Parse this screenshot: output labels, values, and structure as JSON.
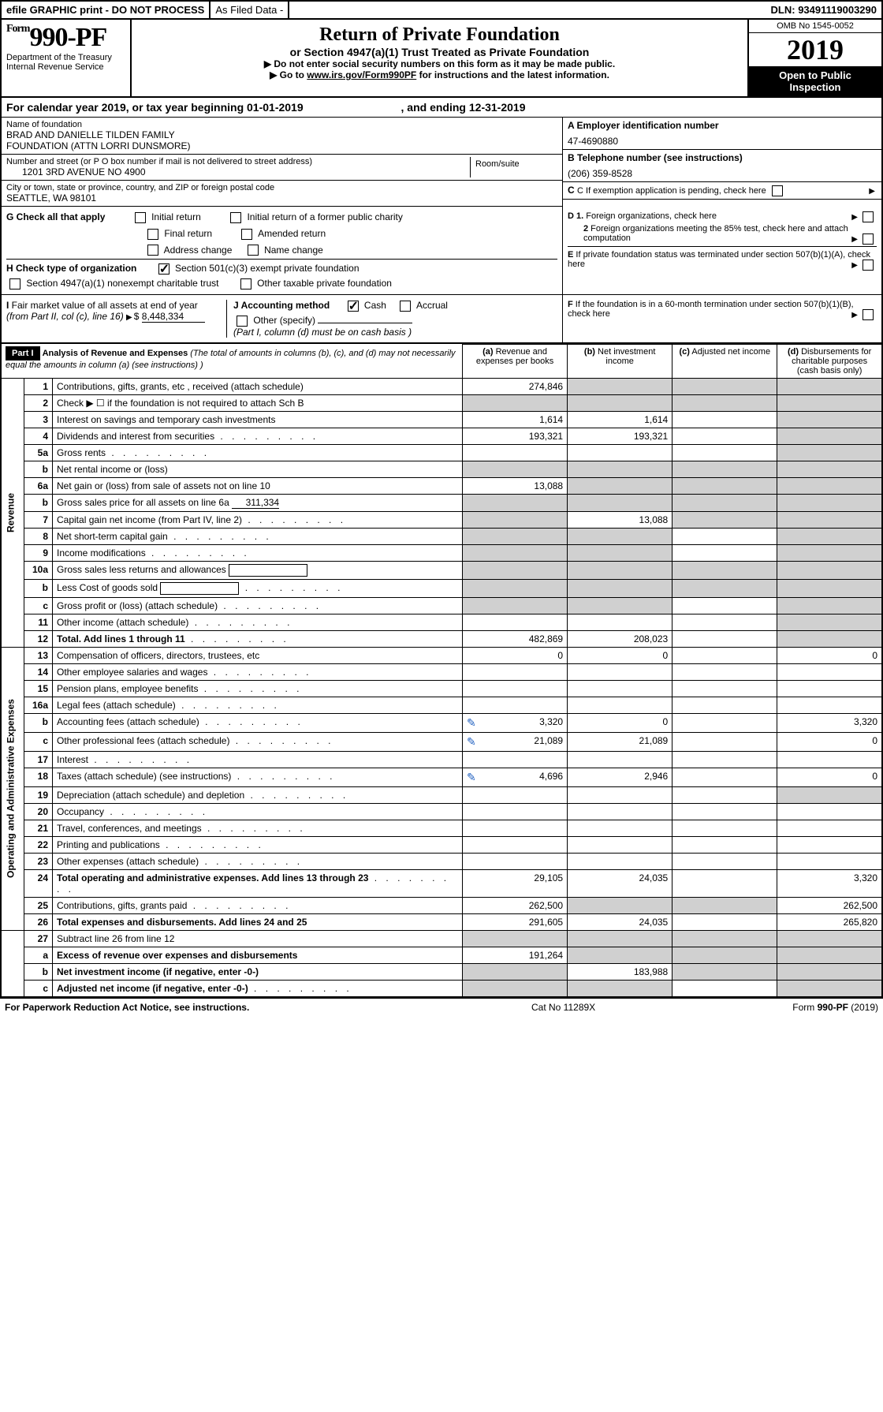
{
  "topbar": {
    "efile": "efile GRAPHIC print - DO NOT PROCESS",
    "as_filed": "As Filed Data -",
    "dln_label": "DLN:",
    "dln": "93491119003290"
  },
  "header": {
    "form_prefix": "Form",
    "form_number": "990-PF",
    "dept": "Department of the Treasury",
    "irs": "Internal Revenue Service",
    "title": "Return of Private Foundation",
    "subtitle": "or Section 4947(a)(1) Trust Treated as Private Foundation",
    "instr1": "▶ Do not enter social security numbers on this form as it may be made public.",
    "instr2_pre": "▶ Go to ",
    "instr2_link": "www.irs.gov/Form990PF",
    "instr2_post": " for instructions and the latest information.",
    "omb": "OMB No 1545-0052",
    "year": "2019",
    "open": "Open to Public Inspection"
  },
  "calyear": {
    "text_pre": "For calendar year 2019, or tax year beginning ",
    "begin": "01-01-2019",
    "mid": " , and ending ",
    "end": "12-31-2019"
  },
  "foundation": {
    "name_label": "Name of foundation",
    "name1": "BRAD AND DANIELLE TILDEN FAMILY",
    "name2": "FOUNDATION (ATTN LORRI DUNSMORE)",
    "addr_label": "Number and street (or P O  box number if mail is not delivered to street address)",
    "room_label": "Room/suite",
    "addr": "1201 3RD AVENUE NO 4900",
    "city_label": "City or town, state or province, country, and ZIP or foreign postal code",
    "city": "SEATTLE, WA  98101"
  },
  "right_info": {
    "a_label": "A Employer identification number",
    "a_val": "47-4690880",
    "b_label": "B Telephone number (see instructions)",
    "b_val": "(206) 359-8528",
    "c_label": "C If exemption application is pending, check here",
    "d1": "D 1. Foreign organizations, check here",
    "d2": "2 Foreign organizations meeting the 85% test, check here and attach computation",
    "e": "E If private foundation status was terminated under section 507(b)(1)(A), check here",
    "f": "F If the foundation is in a 60-month termination under section 507(b)(1)(B), check here"
  },
  "g": {
    "label": "G Check all that apply",
    "opt1": "Initial return",
    "opt2": "Initial return of a former public charity",
    "opt3": "Final return",
    "opt4": "Amended return",
    "opt5": "Address change",
    "opt6": "Name change"
  },
  "h": {
    "label": "H Check type of organization",
    "opt1": "Section 501(c)(3) exempt private foundation",
    "opt2": "Section 4947(a)(1) nonexempt charitable trust",
    "opt3": "Other taxable private foundation"
  },
  "i": {
    "label": "I Fair market value of all assets at end of year (from Part II, col  (c), line 16)",
    "val": "8,448,334"
  },
  "j": {
    "label": "J Accounting method",
    "cash": "Cash",
    "accrual": "Accrual",
    "other": "Other (specify)",
    "note": "(Part I, column (d) must be on cash basis )"
  },
  "part1": {
    "label": "Part I",
    "title": "Analysis of Revenue and Expenses",
    "title_note": "(The total of amounts in columns (b), (c), and (d) may not necessarily equal the amounts in column (a) (see instructions) )",
    "col_a": "(a) Revenue and expenses per books",
    "col_b": "(b) Net investment income",
    "col_c": "(c) Adjusted net income",
    "col_d": "(d) Disbursements for charitable purposes (cash basis only)"
  },
  "sections": {
    "revenue": "Revenue",
    "expenses": "Operating and Administrative Expenses"
  },
  "rows": [
    {
      "n": "1",
      "desc": "Contributions, gifts, grants, etc , received (attach schedule)",
      "a": "274,846",
      "b": "",
      "c": "",
      "d": "",
      "bgrey": true,
      "cgrey": true,
      "dgrey": true
    },
    {
      "n": "2",
      "desc": "Check ▶ ☐ if the foundation is not required to attach Sch  B",
      "a": "",
      "b": "",
      "c": "",
      "d": "",
      "bgrey": true,
      "cgrey": true,
      "dgrey": true,
      "agrey": true
    },
    {
      "n": "3",
      "desc": "Interest on savings and temporary cash investments",
      "a": "1,614",
      "b": "1,614",
      "c": "",
      "d": "",
      "dgrey": true
    },
    {
      "n": "4",
      "desc": "Dividends and interest from securities",
      "dots": true,
      "a": "193,321",
      "b": "193,321",
      "c": "",
      "d": "",
      "dgrey": true
    },
    {
      "n": "5a",
      "desc": "Gross rents",
      "dots": true,
      "a": "",
      "b": "",
      "c": "",
      "d": "",
      "dgrey": true
    },
    {
      "n": "b",
      "desc": "Net rental income or (loss)",
      "a": "",
      "b": "",
      "c": "",
      "d": "",
      "agrey": true,
      "bgrey": true,
      "cgrey": true,
      "dgrey": true
    },
    {
      "n": "6a",
      "desc": "Net gain or (loss) from sale of assets not on line 10",
      "a": "13,088",
      "b": "",
      "c": "",
      "d": "",
      "bgrey": true,
      "cgrey": true,
      "dgrey": true
    },
    {
      "n": "b",
      "desc": "Gross sales price for all assets on line 6a",
      "inline": "311,334",
      "a": "",
      "b": "",
      "c": "",
      "d": "",
      "agrey": true,
      "bgrey": true,
      "cgrey": true,
      "dgrey": true
    },
    {
      "n": "7",
      "desc": "Capital gain net income (from Part IV, line 2)",
      "dots": true,
      "a": "",
      "b": "13,088",
      "c": "",
      "d": "",
      "agrey": true,
      "cgrey": true,
      "dgrey": true
    },
    {
      "n": "8",
      "desc": "Net short-term capital gain",
      "dots": true,
      "a": "",
      "b": "",
      "c": "",
      "d": "",
      "agrey": true,
      "bgrey": true,
      "dgrey": true
    },
    {
      "n": "9",
      "desc": "Income modifications",
      "dots": true,
      "a": "",
      "b": "",
      "c": "",
      "d": "",
      "agrey": true,
      "bgrey": true,
      "dgrey": true
    },
    {
      "n": "10a",
      "desc": "Gross sales less returns and allowances",
      "box": true,
      "a": "",
      "b": "",
      "c": "",
      "d": "",
      "agrey": true,
      "bgrey": true,
      "cgrey": true,
      "dgrey": true
    },
    {
      "n": "b",
      "desc": "Less  Cost of goods sold",
      "dots": true,
      "box": true,
      "a": "",
      "b": "",
      "c": "",
      "d": "",
      "agrey": true,
      "bgrey": true,
      "cgrey": true,
      "dgrey": true
    },
    {
      "n": "c",
      "desc": "Gross profit or (loss) (attach schedule)",
      "dots": true,
      "a": "",
      "b": "",
      "c": "",
      "d": "",
      "agrey": true,
      "bgrey": true,
      "dgrey": true
    },
    {
      "n": "11",
      "desc": "Other income (attach schedule)",
      "dots": true,
      "a": "",
      "b": "",
      "c": "",
      "d": "",
      "dgrey": true
    },
    {
      "n": "12",
      "desc": "Total. Add lines 1 through 11",
      "bold": true,
      "dots": true,
      "a": "482,869",
      "b": "208,023",
      "c": "",
      "d": "",
      "dgrey": true
    }
  ],
  "exp_rows": [
    {
      "n": "13",
      "desc": "Compensation of officers, directors, trustees, etc",
      "a": "0",
      "b": "0",
      "c": "",
      "d": "0"
    },
    {
      "n": "14",
      "desc": "Other employee salaries and wages",
      "dots": true,
      "a": "",
      "b": "",
      "c": "",
      "d": ""
    },
    {
      "n": "15",
      "desc": "Pension plans, employee benefits",
      "dots": true,
      "a": "",
      "b": "",
      "c": "",
      "d": ""
    },
    {
      "n": "16a",
      "desc": "Legal fees (attach schedule)",
      "dots": true,
      "a": "",
      "b": "",
      "c": "",
      "d": ""
    },
    {
      "n": "b",
      "desc": "Accounting fees (attach schedule)",
      "dots": true,
      "pencil": true,
      "a": "3,320",
      "b": "0",
      "c": "",
      "d": "3,320"
    },
    {
      "n": "c",
      "desc": "Other professional fees (attach schedule)",
      "dots": true,
      "pencil": true,
      "a": "21,089",
      "b": "21,089",
      "c": "",
      "d": "0"
    },
    {
      "n": "17",
      "desc": "Interest",
      "dots": true,
      "a": "",
      "b": "",
      "c": "",
      "d": ""
    },
    {
      "n": "18",
      "desc": "Taxes (attach schedule) (see instructions)",
      "dots": true,
      "pencil": true,
      "a": "4,696",
      "b": "2,946",
      "c": "",
      "d": "0"
    },
    {
      "n": "19",
      "desc": "Depreciation (attach schedule) and depletion",
      "dots": true,
      "a": "",
      "b": "",
      "c": "",
      "d": "",
      "dgrey": true
    },
    {
      "n": "20",
      "desc": "Occupancy",
      "dots": true,
      "a": "",
      "b": "",
      "c": "",
      "d": ""
    },
    {
      "n": "21",
      "desc": "Travel, conferences, and meetings",
      "dots": true,
      "a": "",
      "b": "",
      "c": "",
      "d": ""
    },
    {
      "n": "22",
      "desc": "Printing and publications",
      "dots": true,
      "a": "",
      "b": "",
      "c": "",
      "d": ""
    },
    {
      "n": "23",
      "desc": "Other expenses (attach schedule)",
      "dots": true,
      "a": "",
      "b": "",
      "c": "",
      "d": ""
    },
    {
      "n": "24",
      "desc": "Total operating and administrative expenses. Add lines 13 through 23",
      "bold": true,
      "dots": true,
      "a": "29,105",
      "b": "24,035",
      "c": "",
      "d": "3,320"
    },
    {
      "n": "25",
      "desc": "Contributions, gifts, grants paid",
      "dots": true,
      "a": "262,500",
      "b": "",
      "c": "",
      "d": "262,500",
      "bgrey": true,
      "cgrey": true
    },
    {
      "n": "26",
      "desc": "Total expenses and disbursements. Add lines 24 and 25",
      "bold": true,
      "a": "291,605",
      "b": "24,035",
      "c": "",
      "d": "265,820"
    }
  ],
  "final_rows": [
    {
      "n": "27",
      "desc": "Subtract line 26 from line 12",
      "a": "",
      "b": "",
      "c": "",
      "d": "",
      "agrey": true,
      "bgrey": true,
      "cgrey": true,
      "dgrey": true
    },
    {
      "n": "a",
      "desc": "Excess of revenue over expenses and disbursements",
      "bold": true,
      "a": "191,264",
      "b": "",
      "c": "",
      "d": "",
      "bgrey": true,
      "cgrey": true,
      "dgrey": true
    },
    {
      "n": "b",
      "desc": "Net investment income (if negative, enter -0-)",
      "bold": true,
      "a": "",
      "b": "183,988",
      "c": "",
      "d": "",
      "agrey": true,
      "cgrey": true,
      "dgrey": true
    },
    {
      "n": "c",
      "desc": "Adjusted net income (if negative, enter -0-)",
      "bold": true,
      "dots": true,
      "a": "",
      "b": "",
      "c": "",
      "d": "",
      "agrey": true,
      "bgrey": true,
      "dgrey": true
    }
  ],
  "footer": {
    "left": "For Paperwork Reduction Act Notice, see instructions.",
    "mid": "Cat  No  11289X",
    "right_pre": "Form ",
    "right_form": "990-PF",
    "right_post": " (2019)"
  }
}
